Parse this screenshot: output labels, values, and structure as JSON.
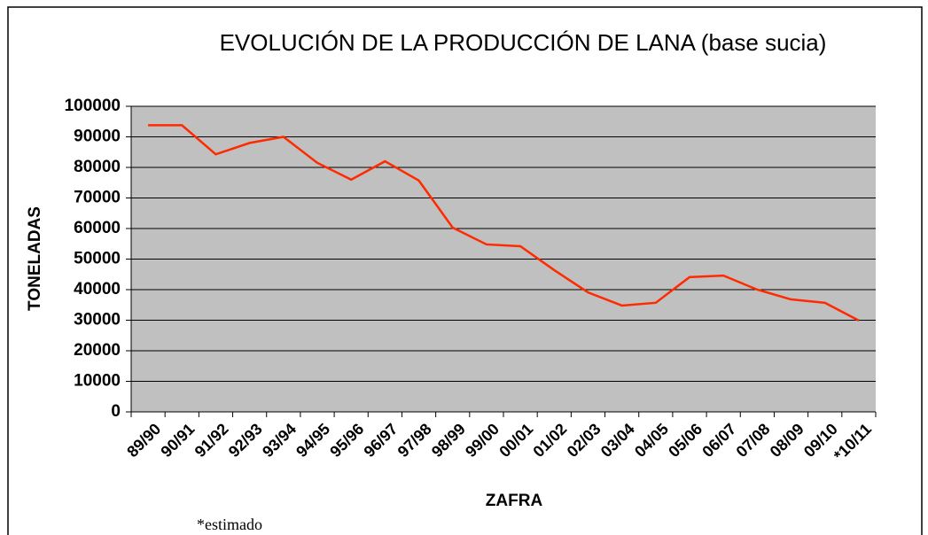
{
  "chart_data": {
    "type": "line",
    "title": "EVOLUCIÓN DE LA PRODUCCIÓN DE LANA (base sucia)",
    "x_label": "ZAFRA",
    "y_label": "TONELADAS",
    "note": "*estimado",
    "categories": [
      "89/90",
      "90/91",
      "91/92",
      "92/93",
      "93/94",
      "94/95",
      "95/96",
      "96/97",
      "97/98",
      "98/99",
      "99/00",
      "00/01",
      "01/02",
      "02/03",
      "03/04",
      "04/05",
      "05/06",
      "06/07",
      "07/08",
      "08/09",
      "09/10",
      "*10/11"
    ],
    "series": [
      {
        "name": "TONELADAS",
        "color": "#ff2a00",
        "values": [
          93800,
          93800,
          84300,
          88000,
          90000,
          81500,
          76000,
          82000,
          75700,
          60300,
          54800,
          54200,
          46400,
          39100,
          34800,
          35700,
          44100,
          44600,
          40000,
          36800,
          35700,
          29900
        ]
      }
    ],
    "ylim": [
      0,
      100000
    ],
    "yticks": [
      0,
      10000,
      20000,
      30000,
      40000,
      50000,
      60000,
      70000,
      80000,
      90000,
      100000
    ],
    "grid": true
  }
}
